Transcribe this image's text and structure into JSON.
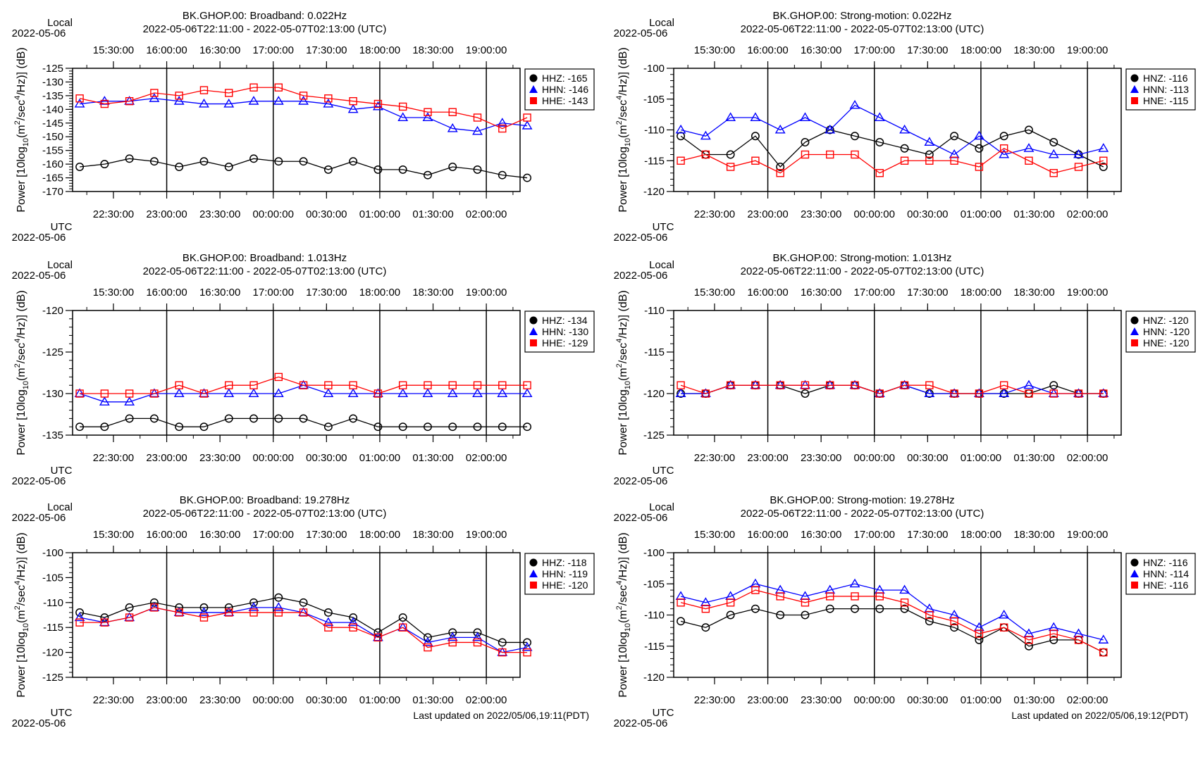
{
  "page": {
    "updated_left": "Last updated on 2022/05/06,19:11(PDT)",
    "updated_right": "Last updated on 2022/05/06,19:12(PDT)"
  },
  "colors": {
    "HHZ": "#000000",
    "HHN": "#0000ff",
    "HHE": "#ff0000"
  },
  "chart_data": [
    {
      "type": "line",
      "title": "BK.GHOP.00: Broadband: 0.022Hz",
      "subtitle": "2022-05-06T22:11:00 - 2022-05-07T02:13:00 (UTC)",
      "ylabel": "Power [10log10(m2/sec4/Hz)] (dB)",
      "ylim": [
        -170,
        -125
      ],
      "yticks": [
        -170,
        -165,
        -160,
        -155,
        -150,
        -145,
        -140,
        -135,
        -130,
        -125
      ],
      "x_top_label": "Local",
      "x_top_date": "2022-05-06",
      "x_bottom_label": "UTC",
      "x_bottom_date": "2022-05-06",
      "local_ticks": [
        "15:30:00",
        "16:00:00",
        "16:30:00",
        "17:00:00",
        "17:30:00",
        "18:00:00",
        "18:30:00",
        "19:00:00"
      ],
      "utc_ticks": [
        "22:30:00",
        "23:00:00",
        "23:30:00",
        "00:00:00",
        "00:30:00",
        "01:00:00",
        "01:30:00",
        "02:00:00"
      ],
      "legend": [
        "HHZ: -165",
        "HHN: -146",
        "HHE: -143"
      ],
      "series": [
        {
          "name": "HHZ",
          "values": [
            -161,
            -160,
            -158,
            -159,
            -161,
            -159,
            -161,
            -158,
            -159,
            -159,
            -162,
            -159,
            -162,
            -162,
            -164,
            -161,
            -162,
            -164,
            -165
          ]
        },
        {
          "name": "HHN",
          "values": [
            -138,
            -137,
            -137,
            -136,
            -137,
            -138,
            -138,
            -137,
            -137,
            -137,
            -138,
            -140,
            -139,
            -143,
            -143,
            -147,
            -148,
            -145,
            -146
          ]
        },
        {
          "name": "HHE",
          "values": [
            -136,
            -138,
            -137,
            -134,
            -135,
            -133,
            -134,
            -132,
            -132,
            -135,
            -136,
            -137,
            -138,
            -139,
            -141,
            -141,
            -143,
            -147,
            -143
          ]
        }
      ]
    },
    {
      "type": "line",
      "title": "BK.GHOP.00: Strong-motion: 0.022Hz",
      "subtitle": "2022-05-06T22:11:00 - 2022-05-07T02:13:00 (UTC)",
      "ylabel": "Power [10log10(m2/sec4/Hz)] (dB)",
      "ylim": [
        -120,
        -100
      ],
      "yticks": [
        -120,
        -115,
        -110,
        -105,
        -100
      ],
      "x_top_label": "Local",
      "x_top_date": "2022-05-06",
      "x_bottom_label": "UTC",
      "x_bottom_date": "2022-05-06",
      "local_ticks": [
        "15:30:00",
        "16:00:00",
        "16:30:00",
        "17:00:00",
        "17:30:00",
        "18:00:00",
        "18:30:00",
        "19:00:00"
      ],
      "utc_ticks": [
        "22:30:00",
        "23:00:00",
        "23:30:00",
        "00:00:00",
        "00:30:00",
        "01:00:00",
        "01:30:00",
        "02:00:00"
      ],
      "legend": [
        "HNZ: -116",
        "HNN: -113",
        "HNE: -115"
      ],
      "series": [
        {
          "name": "HNZ",
          "values": [
            -111,
            -114,
            -114,
            -111,
            -116,
            -112,
            -110,
            -111,
            -112,
            -113,
            -114,
            -111,
            -113,
            -111,
            -110,
            -112,
            -114,
            -116
          ]
        },
        {
          "name": "HNN",
          "values": [
            -110,
            -111,
            -108,
            -108,
            -110,
            -108,
            -110,
            -106,
            -108,
            -110,
            -112,
            -114,
            -111,
            -114,
            -113,
            -114,
            -114,
            -113
          ]
        },
        {
          "name": "HNE",
          "values": [
            -115,
            -114,
            -116,
            -115,
            -117,
            -114,
            -114,
            -114,
            -117,
            -115,
            -115,
            -115,
            -116,
            -113,
            -115,
            -117,
            -116,
            -115
          ]
        }
      ]
    },
    {
      "type": "line",
      "title": "BK.GHOP.00: Broadband: 1.013Hz",
      "subtitle": "2022-05-06T22:11:00 - 2022-05-07T02:13:00 (UTC)",
      "ylabel": "Power [10log10(m2/sec4/Hz)] (dB)",
      "ylim": [
        -135,
        -120
      ],
      "yticks": [
        -135,
        -130,
        -125,
        -120
      ],
      "x_top_label": "Local",
      "x_top_date": "2022-05-06",
      "x_bottom_label": "UTC",
      "x_bottom_date": "2022-05-06",
      "local_ticks": [
        "15:30:00",
        "16:00:00",
        "16:30:00",
        "17:00:00",
        "17:30:00",
        "18:00:00",
        "18:30:00",
        "19:00:00"
      ],
      "utc_ticks": [
        "22:30:00",
        "23:00:00",
        "23:30:00",
        "00:00:00",
        "00:30:00",
        "01:00:00",
        "01:30:00",
        "02:00:00"
      ],
      "legend": [
        "HHZ: -134",
        "HHN: -130",
        "HHE: -129"
      ],
      "series": [
        {
          "name": "HHZ",
          "values": [
            -134,
            -134,
            -133,
            -133,
            -134,
            -134,
            -133,
            -133,
            -133,
            -133,
            -134,
            -133,
            -134,
            -134,
            -134,
            -134,
            -134,
            -134,
            -134
          ]
        },
        {
          "name": "HHN",
          "values": [
            -130,
            -131,
            -131,
            -130,
            -130,
            -130,
            -130,
            -130,
            -130,
            -129,
            -130,
            -130,
            -130,
            -130,
            -130,
            -130,
            -130,
            -130,
            -130
          ]
        },
        {
          "name": "HHE",
          "values": [
            -130,
            -130,
            -130,
            -130,
            -129,
            -130,
            -129,
            -129,
            -128,
            -129,
            -129,
            -129,
            -130,
            -129,
            -129,
            -129,
            -129,
            -129,
            -129
          ]
        }
      ]
    },
    {
      "type": "line",
      "title": "BK.GHOP.00: Strong-motion: 1.013Hz",
      "subtitle": "2022-05-06T22:11:00 - 2022-05-07T02:13:00 (UTC)",
      "ylabel": "Power [10log10(m2/sec4/Hz)] (dB)",
      "ylim": [
        -125,
        -110
      ],
      "yticks": [
        -125,
        -120,
        -115,
        -110
      ],
      "x_top_label": "Local",
      "x_top_date": "2022-05-06",
      "x_bottom_label": "UTC",
      "x_bottom_date": "2022-05-06",
      "local_ticks": [
        "15:30:00",
        "16:00:00",
        "16:30:00",
        "17:00:00",
        "17:30:00",
        "18:00:00",
        "18:30:00",
        "19:00:00"
      ],
      "utc_ticks": [
        "22:30:00",
        "23:00:00",
        "23:30:00",
        "00:00:00",
        "00:30:00",
        "01:00:00",
        "01:30:00",
        "02:00:00"
      ],
      "legend": [
        "HNZ: -120",
        "HNN: -120",
        "HNE: -120"
      ],
      "series": [
        {
          "name": "HNZ",
          "values": [
            -120,
            -120,
            -119,
            -119,
            -119,
            -120,
            -119,
            -119,
            -120,
            -119,
            -120,
            -120,
            -120,
            -120,
            -120,
            -119,
            -120,
            -120
          ]
        },
        {
          "name": "HNN",
          "values": [
            -120,
            -120,
            -119,
            -119,
            -119,
            -119,
            -119,
            -119,
            -120,
            -119,
            -120,
            -120,
            -120,
            -120,
            -119,
            -120,
            -120,
            -120
          ]
        },
        {
          "name": "HNE",
          "values": [
            -119,
            -120,
            -119,
            -119,
            -119,
            -119,
            -119,
            -119,
            -120,
            -119,
            -119,
            -120,
            -120,
            -119,
            -120,
            -120,
            -120,
            -120
          ]
        }
      ]
    },
    {
      "type": "line",
      "title": "BK.GHOP.00: Broadband: 19.278Hz",
      "subtitle": "2022-05-06T22:11:00 - 2022-05-07T02:13:00 (UTC)",
      "ylabel": "Power [10log10(m2/sec4/Hz)] (dB)",
      "ylim": [
        -125,
        -100
      ],
      "yticks": [
        -125,
        -120,
        -115,
        -110,
        -105,
        -100
      ],
      "x_top_label": "Local",
      "x_top_date": "2022-05-06",
      "x_bottom_label": "UTC",
      "x_bottom_date": "2022-05-06",
      "local_ticks": [
        "15:30:00",
        "16:00:00",
        "16:30:00",
        "17:00:00",
        "17:30:00",
        "18:00:00",
        "18:30:00",
        "19:00:00"
      ],
      "utc_ticks": [
        "22:30:00",
        "23:00:00",
        "23:30:00",
        "00:00:00",
        "00:30:00",
        "01:00:00",
        "01:30:00",
        "02:00:00"
      ],
      "legend": [
        "HHZ: -118",
        "HHN: -119",
        "HHE: -120"
      ],
      "series": [
        {
          "name": "HHZ",
          "values": [
            -112,
            -113,
            -111,
            -110,
            -111,
            -111,
            -111,
            -110,
            -109,
            -110,
            -112,
            -113,
            -116,
            -113,
            -117,
            -116,
            -116,
            -118,
            -118
          ]
        },
        {
          "name": "HHN",
          "values": [
            -113,
            -114,
            -113,
            -111,
            -112,
            -112,
            -112,
            -111,
            -111,
            -112,
            -114,
            -114,
            -117,
            -115,
            -118,
            -117,
            -117,
            -120,
            -119
          ]
        },
        {
          "name": "HHE",
          "values": [
            -114,
            -114,
            -113,
            -111,
            -112,
            -113,
            -112,
            -112,
            -112,
            -112,
            -115,
            -115,
            -117,
            -115,
            -119,
            -118,
            -118,
            -120,
            -120
          ]
        }
      ]
    },
    {
      "type": "line",
      "title": "BK.GHOP.00: Strong-motion: 19.278Hz",
      "subtitle": "2022-05-06T22:11:00 - 2022-05-07T02:13:00 (UTC)",
      "ylabel": "Power [10log10(m2/sec4/Hz)] (dB)",
      "ylim": [
        -120,
        -100
      ],
      "yticks": [
        -120,
        -115,
        -110,
        -105,
        -100
      ],
      "x_top_label": "Local",
      "x_top_date": "2022-05-06",
      "x_bottom_label": "UTC",
      "x_bottom_date": "2022-05-06",
      "local_ticks": [
        "15:30:00",
        "16:00:00",
        "16:30:00",
        "17:00:00",
        "17:30:00",
        "18:00:00",
        "18:30:00",
        "19:00:00"
      ],
      "utc_ticks": [
        "22:30:00",
        "23:00:00",
        "23:30:00",
        "00:00:00",
        "00:30:00",
        "01:00:00",
        "01:30:00",
        "02:00:00"
      ],
      "legend": [
        "HNZ: -116",
        "HNN: -114",
        "HNE: -116"
      ],
      "series": [
        {
          "name": "HNZ",
          "values": [
            -111,
            -112,
            -110,
            -109,
            -110,
            -110,
            -109,
            -109,
            -109,
            -109,
            -111,
            -112,
            -114,
            -112,
            -115,
            -114,
            -114,
            -116
          ]
        },
        {
          "name": "HNN",
          "values": [
            -107,
            -108,
            -107,
            -105,
            -106,
            -107,
            -106,
            -105,
            -106,
            -106,
            -109,
            -110,
            -112,
            -110,
            -113,
            -112,
            -113,
            -114
          ]
        },
        {
          "name": "HNE",
          "values": [
            -108,
            -109,
            -108,
            -106,
            -107,
            -108,
            -107,
            -107,
            -107,
            -108,
            -110,
            -111,
            -113,
            -112,
            -114,
            -113,
            -114,
            -116
          ]
        }
      ]
    }
  ]
}
